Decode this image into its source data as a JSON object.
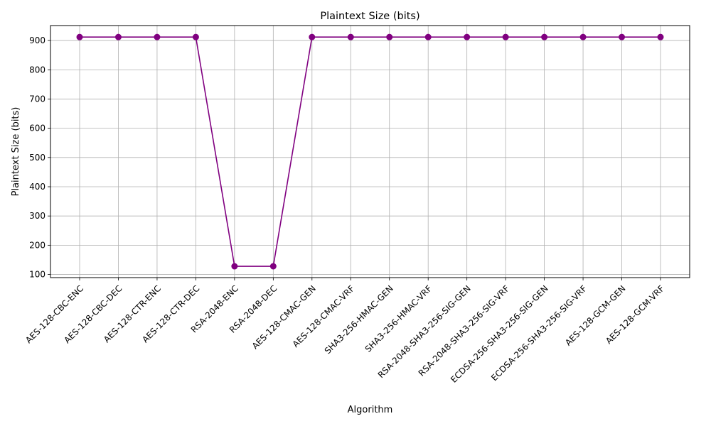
{
  "chart_data": {
    "type": "line",
    "title": "Plaintext Size (bits)",
    "xlabel": "Algorithm",
    "ylabel": "Plaintext Size (bits)",
    "categories": [
      "AES-128-CBC-ENC",
      "AES-128-CBC-DEC",
      "AES-128-CTR-ENC",
      "AES-128-CTR-DEC",
      "RSA-2048-ENC",
      "RSA-2048-DEC",
      "AES-128-CMAC-GEN",
      "AES-128-CMAC-VRF",
      "SHA3-256-HMAC-GEN",
      "SHA3-256-HMAC-VRF",
      "RSA-2048-SHA3-256-SIG-GEN",
      "RSA-2048-SHA3-256-SIG-VRF",
      "ECDSA-256-SHA3-256-SIG-GEN",
      "ECDSA-256-SHA3-256-SIG-VRF",
      "AES-128-GCM-GEN",
      "AES-128-GCM-VRF"
    ],
    "series": [
      {
        "values": [
          912,
          912,
          912,
          912,
          128,
          128,
          912,
          912,
          912,
          912,
          912,
          912,
          912,
          912,
          912,
          912
        ],
        "color": "#800080",
        "marker": "circle"
      }
    ],
    "yticks": [
      100,
      200,
      300,
      400,
      500,
      600,
      700,
      800,
      900
    ],
    "ylim": [
      89.2,
      951.2
    ],
    "grid": true,
    "x_tick_rotation": 45
  }
}
